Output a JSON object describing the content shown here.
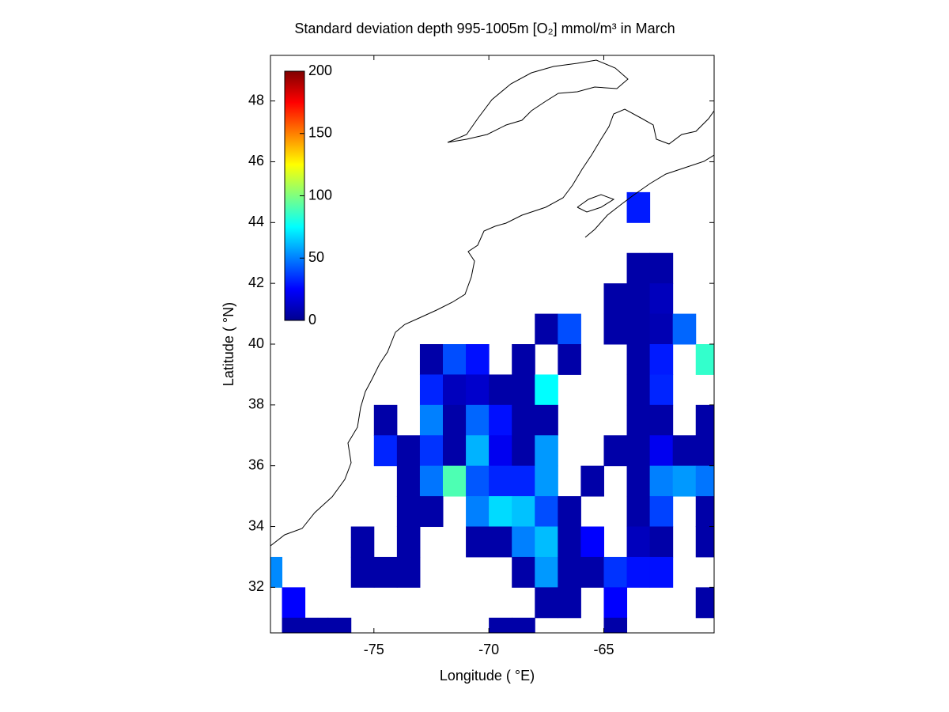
{
  "chart_data": {
    "type": "heatmap",
    "title": "Standard deviation depth 995-1005m [O₂] mmol/m³ in March",
    "x_label": "Longitude ( °E)",
    "y_label": "Latitude ( °N)",
    "xlim": [
      -79.5,
      -60.2
    ],
    "ylim": [
      30.5,
      49.5
    ],
    "xticks": [
      -75,
      -70,
      -65
    ],
    "yticks": [
      32,
      34,
      36,
      38,
      40,
      42,
      44,
      46,
      48
    ],
    "colormap": "jet",
    "clim": [
      0,
      200
    ],
    "colorbar_ticks": [
      0,
      50,
      100,
      150,
      200
    ],
    "x": [
      -63.5,
      -63.5,
      -62.5,
      -64.5,
      -63.5,
      -62.5,
      -67.5,
      -66.5,
      -64.5,
      -63.5,
      -62.5,
      -61.5,
      -72.5,
      -71.5,
      -70.5,
      -68.5,
      -66.5,
      -63.5,
      -62.5,
      -60.5,
      -72.5,
      -71.5,
      -70.5,
      -69.5,
      -68.5,
      -67.5,
      -63.5,
      -62.5,
      -74.5,
      -72.5,
      -71.5,
      -70.5,
      -69.5,
      -68.5,
      -67.5,
      -63.5,
      -62.5,
      -60.5,
      -74.5,
      -73.5,
      -72.5,
      -71.5,
      -70.5,
      -69.5,
      -68.5,
      -67.5,
      -64.5,
      -63.5,
      -62.5,
      -61.5,
      -60.5,
      -73.5,
      -72.5,
      -71.5,
      -70.5,
      -69.5,
      -68.5,
      -67.5,
      -65.5,
      -63.5,
      -62.5,
      -61.5,
      -60.5,
      -73.5,
      -72.5,
      -70.5,
      -69.5,
      -68.5,
      -67.5,
      -66.5,
      -63.5,
      -62.5,
      -60.5,
      -75.5,
      -73.5,
      -70.5,
      -69.5,
      -68.5,
      -67.5,
      -66.5,
      -65.5,
      -63.5,
      -62.5,
      -60.5,
      -79.5,
      -75.5,
      -74.5,
      -73.5,
      -68.5,
      -67.5,
      -66.5,
      -65.5,
      -64.5,
      -63.5,
      -62.5,
      -78.5,
      -67.5,
      -66.5,
      -64.5,
      -60.5,
      -78.5,
      -77.5,
      -76.5,
      -69.5,
      -68.5,
      -64.5
    ],
    "y": [
      44.5,
      42.5,
      42.5,
      41.5,
      41.5,
      41.5,
      40.5,
      40.5,
      40.5,
      40.5,
      40.5,
      40.5,
      39.5,
      39.5,
      39.5,
      39.5,
      39.5,
      39.5,
      39.5,
      39.5,
      38.5,
      38.5,
      38.5,
      38.5,
      38.5,
      38.5,
      38.5,
      38.5,
      37.5,
      37.5,
      37.5,
      37.5,
      37.5,
      37.5,
      37.5,
      37.5,
      37.5,
      37.5,
      36.5,
      36.5,
      36.5,
      36.5,
      36.5,
      36.5,
      36.5,
      36.5,
      36.5,
      36.5,
      36.5,
      36.5,
      36.5,
      35.5,
      35.5,
      35.5,
      35.5,
      35.5,
      35.5,
      35.5,
      35.5,
      35.5,
      35.5,
      35.5,
      35.5,
      34.5,
      34.5,
      34.5,
      34.5,
      34.5,
      34.5,
      34.5,
      34.5,
      34.5,
      34.5,
      33.5,
      33.5,
      33.5,
      33.5,
      33.5,
      33.5,
      33.5,
      33.5,
      33.5,
      33.5,
      33.5,
      32.5,
      32.5,
      32.5,
      32.5,
      32.5,
      32.5,
      32.5,
      32.5,
      32.5,
      32.5,
      32.5,
      31.5,
      31.5,
      31.5,
      31.5,
      31.5,
      30.5,
      30.5,
      30.5,
      30.5,
      30.5,
      30.5
    ],
    "values": [
      30,
      8,
      8,
      8,
      8,
      12,
      8,
      40,
      8,
      8,
      10,
      45,
      8,
      40,
      28,
      8,
      8,
      8,
      30,
      85,
      32,
      12,
      15,
      8,
      8,
      75,
      8,
      32,
      8,
      50,
      8,
      45,
      28,
      8,
      8,
      8,
      8,
      8,
      32,
      8,
      35,
      8,
      60,
      22,
      8,
      55,
      8,
      8,
      22,
      8,
      8,
      8,
      48,
      90,
      42,
      32,
      32,
      55,
      8,
      8,
      50,
      55,
      48,
      8,
      8,
      50,
      68,
      63,
      40,
      8,
      8,
      38,
      8,
      8,
      8,
      8,
      8,
      50,
      62,
      8,
      25,
      12,
      8,
      8,
      52,
      8,
      8,
      8,
      8,
      55,
      8,
      8,
      35,
      28,
      28,
      25,
      8,
      8,
      25,
      8,
      8,
      8,
      8,
      8,
      8,
      8
    ]
  }
}
